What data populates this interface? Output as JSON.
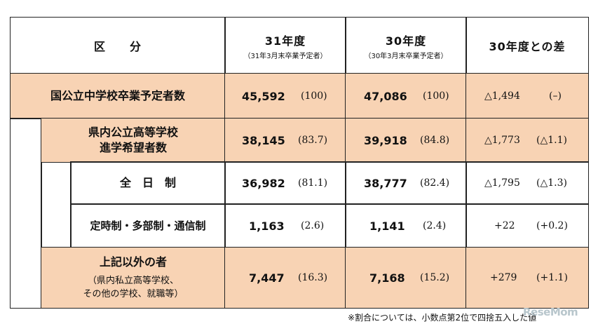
{
  "header": {
    "division": "区　　分",
    "col_31": "31年度",
    "col_31_sub": "（31年3月末卒業予定者）",
    "col_30": "30年度",
    "col_30_sub": "（30年3月末卒業予定者）",
    "col_diff": "30年度との差"
  },
  "rows": [
    {
      "label": "国公立中学校卒業予定者数",
      "v31": "45,592",
      "p31": "(100)",
      "v30": "47,086",
      "p30": "(100)",
      "diff": "△1,494",
      "pdiff": "(–)"
    },
    {
      "label_line1": "県内公立高等学校",
      "label_line2": "進学希望者数",
      "v31": "38,145",
      "p31": "(83.7)",
      "v30": "39,918",
      "p30": "(84.8)",
      "diff": "△1,773",
      "pdiff": "(△1.1)"
    },
    {
      "label": "全　日　制",
      "v31": "36,982",
      "p31": "(81.1)",
      "v30": "38,777",
      "p30": "(82.4)",
      "diff": "△1,795",
      "pdiff": "(△1.3)"
    },
    {
      "label": "定時制・多部制・通信制",
      "v31": "1,163",
      "p31": "(2.6)",
      "v30": "1,141",
      "p30": "(2.4)",
      "diff": "+22",
      "pdiff": "(+0.2)"
    },
    {
      "label_line1": "上記以外の者",
      "label_line2": "（県内私立高等学校、",
      "label_line3": "その他の学校、就職等）",
      "v31": "7,447",
      "p31": "(16.3)",
      "v30": "7,168",
      "p30": "(15.2)",
      "diff": "+279",
      "pdiff": "(+1.1)"
    }
  ],
  "note": "※割合については、小数点第2位で四捨五入した値",
  "watermark": "ReseMom"
}
